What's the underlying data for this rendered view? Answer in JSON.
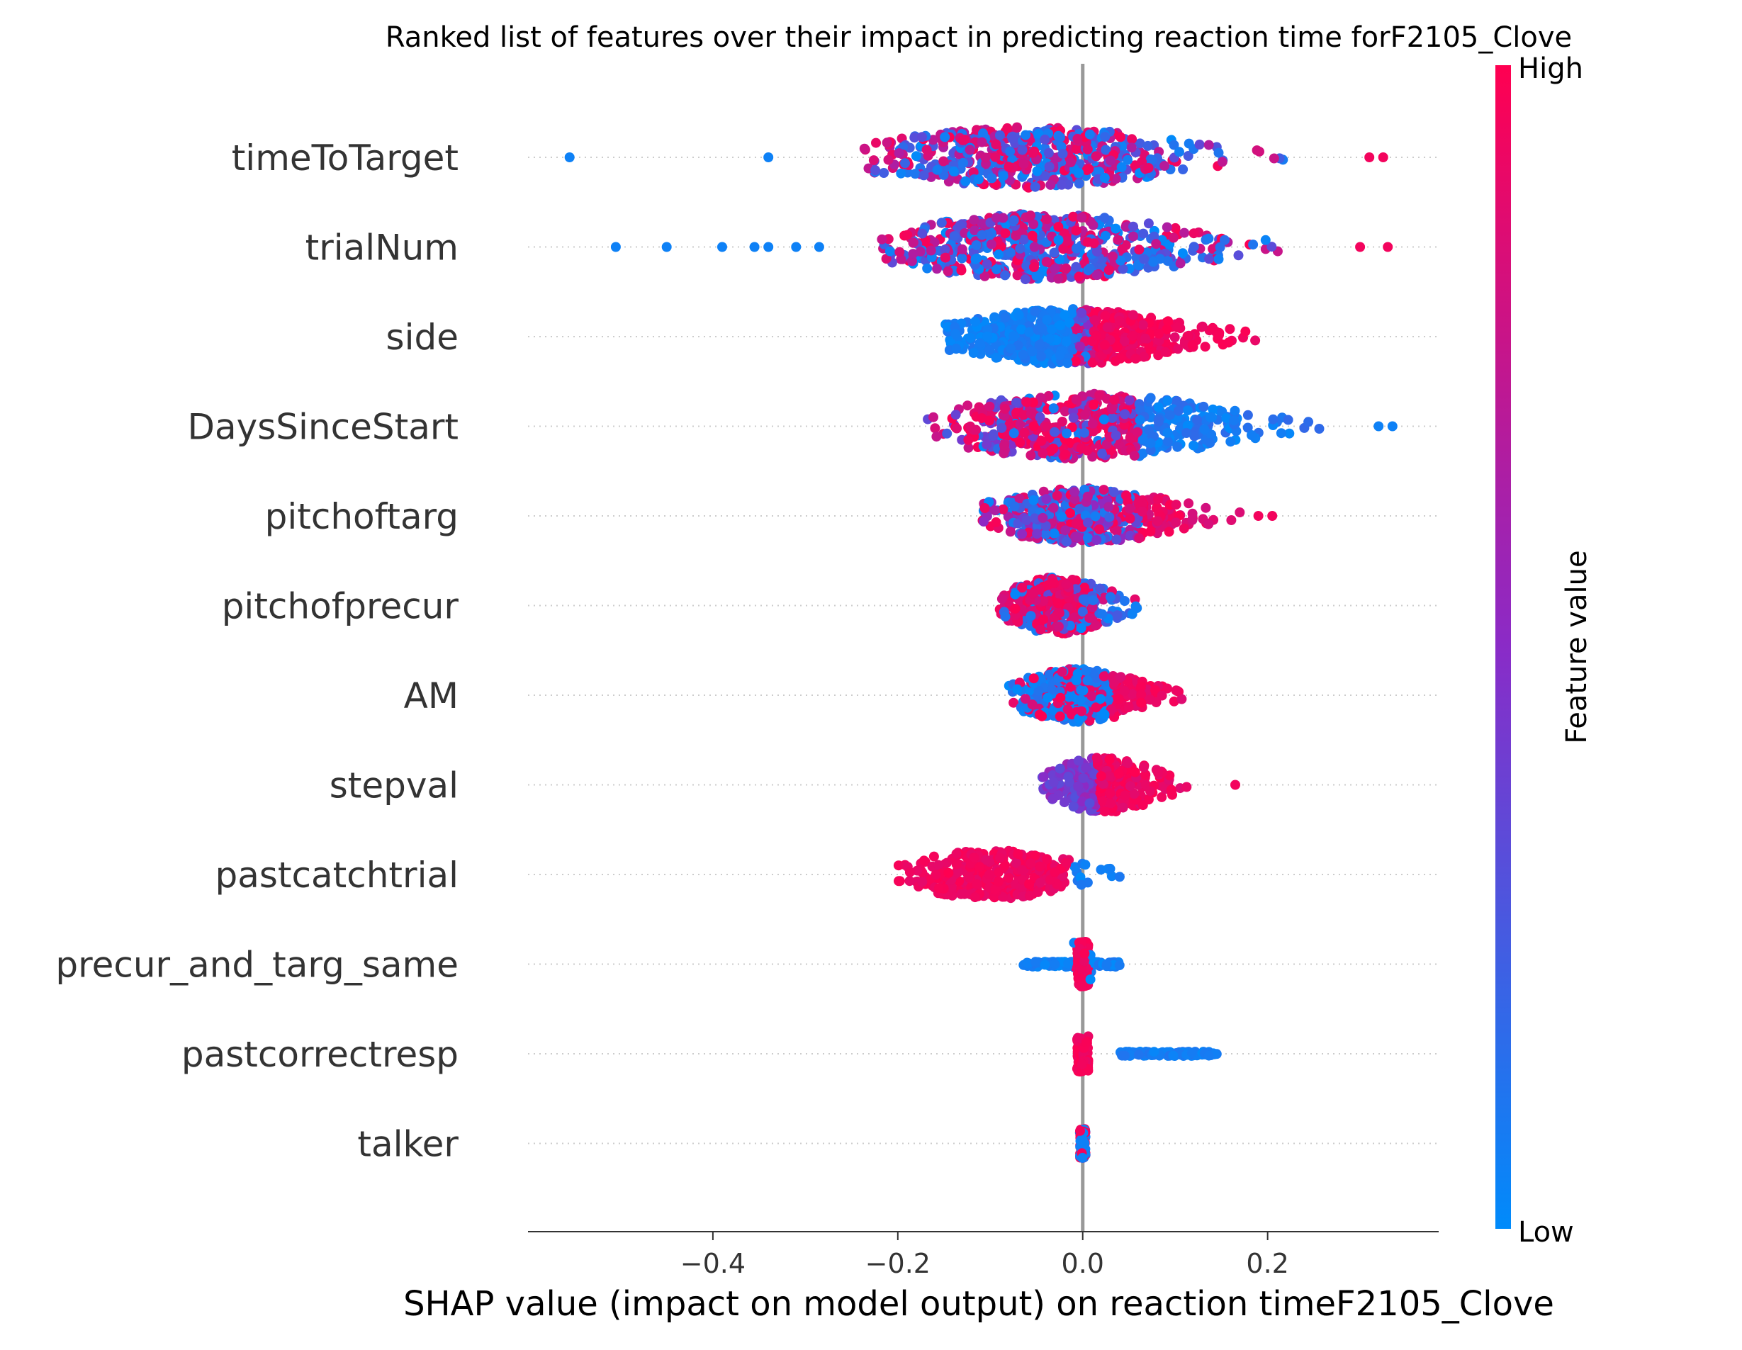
{
  "chart_data": {
    "type": "scatter",
    "subtype": "shap-beeswarm",
    "title": "Ranked list of features over their impact in predicting reaction time forF2105_Clove",
    "xlabel": "SHAP value (impact on model output) on reaction timeF2105_Clove",
    "ylabel": "",
    "xlim": [
      -0.6,
      0.385
    ],
    "xticks": [
      {
        "value": -0.4,
        "label": "−0.4"
      },
      {
        "value": -0.2,
        "label": "−0.2"
      },
      {
        "value": 0.0,
        "label": "0.0"
      },
      {
        "value": 0.2,
        "label": "0.2"
      }
    ],
    "zero_line": 0.0,
    "colorbar": {
      "label": "Feature value",
      "high_label": "High",
      "low_label": "Low",
      "high_color": "#ff0051",
      "mid_color": "#8a2bc7",
      "low_color": "#008bfb"
    },
    "features": [
      {
        "name": "timeToTarget",
        "min": -0.555,
        "max": 0.325,
        "core": [
          -0.24,
          0.22
        ],
        "hw": 0.68,
        "pattern": "mixed",
        "n": 560,
        "outliers": [
          -0.555,
          -0.34,
          0.31,
          0.325
        ]
      },
      {
        "name": "trialNum",
        "min": -0.505,
        "max": 0.33,
        "core": [
          -0.22,
          0.22
        ],
        "hw": 0.75,
        "pattern": "mixed",
        "n": 620,
        "outliers": [
          -0.505,
          -0.45,
          -0.39,
          -0.355,
          -0.34,
          -0.31,
          -0.285,
          0.3,
          0.33
        ]
      },
      {
        "name": "side",
        "min": -0.17,
        "max": 0.21,
        "core": [
          -0.15,
          0.19
        ],
        "hw": 0.62,
        "pattern": "lowLeft",
        "n": 700,
        "outliers": []
      },
      {
        "name": "DaysSinceStart",
        "min": -0.19,
        "max": 0.335,
        "core": [
          -0.17,
          0.26
        ],
        "hw": 0.74,
        "pattern": "highLeft",
        "n": 600,
        "outliers": [
          0.32,
          0.335
        ]
      },
      {
        "name": "pitchoftarg",
        "min": -0.115,
        "max": 0.205,
        "core": [
          -0.11,
          0.17
        ],
        "hw": 0.62,
        "pattern": "mixedHighRight",
        "n": 460,
        "outliers": [
          0.19,
          0.205
        ]
      },
      {
        "name": "pitchofprecur",
        "min": -0.095,
        "max": 0.075,
        "core": [
          -0.09,
          0.07
        ],
        "hw": 0.64,
        "pattern": "highLeftMix",
        "n": 380,
        "outliers": []
      },
      {
        "name": "AM",
        "min": -0.085,
        "max": 0.11,
        "core": [
          -0.08,
          0.11
        ],
        "hw": 0.6,
        "pattern": "lowCenterHighRight",
        "n": 380,
        "outliers": []
      },
      {
        "name": "stepval",
        "min": -0.045,
        "max": 0.165,
        "core": [
          -0.045,
          0.125
        ],
        "hw": 0.62,
        "pattern": "purpleCenterHighRight",
        "n": 330,
        "outliers": [
          0.165
        ]
      },
      {
        "name": "pastcatchtrial",
        "min": -0.2,
        "max": 0.06,
        "core": [
          -0.2,
          0.06
        ],
        "hw": 0.55,
        "pattern": "highLeftLowRight",
        "n": 330,
        "outliers": []
      },
      {
        "name": "precur_and_targ_same",
        "min": -0.065,
        "max": 0.04,
        "core": [
          -0.065,
          0.04
        ],
        "hw": 0.5,
        "pattern": "lowSpreadHighZero",
        "n": 260,
        "outliers": []
      },
      {
        "name": "pastcorrectresp",
        "min": -0.005,
        "max": 0.145,
        "core": [
          -0.005,
          0.145
        ],
        "hw": 0.4,
        "pattern": "highZeroLowRight",
        "n": 240,
        "outliers": []
      },
      {
        "name": "talker",
        "min": -0.003,
        "max": 0.003,
        "core": [
          -0.003,
          0.003
        ],
        "hw": 0.34,
        "pattern": "talker",
        "n": 90,
        "outliers": []
      }
    ]
  }
}
